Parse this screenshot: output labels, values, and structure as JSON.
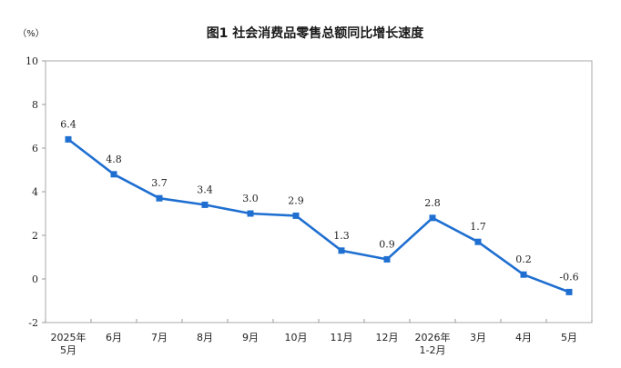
{
  "chart_data": {
    "type": "line",
    "title": "图1  社会消费品零售总额同比增长速度",
    "unit_label": "（%）",
    "categories": [
      [
        "2025年",
        "5月"
      ],
      [
        "6月"
      ],
      [
        "7月"
      ],
      [
        "8月"
      ],
      [
        "9月"
      ],
      [
        "10月"
      ],
      [
        "11月"
      ],
      [
        "12月"
      ],
      [
        "2026年",
        "1-2月"
      ],
      [
        "3月"
      ],
      [
        "4月"
      ],
      [
        "5月"
      ]
    ],
    "values": [
      6.4,
      4.8,
      3.7,
      3.4,
      3.0,
      2.9,
      1.3,
      0.9,
      2.8,
      1.7,
      0.2,
      -0.6
    ],
    "data_labels": [
      "6.4",
      "4.8",
      "3.7",
      "3.4",
      "3.0",
      "2.9",
      "1.3",
      "0.9",
      "2.8",
      "1.7",
      "0.2",
      "-0.6"
    ],
    "ylim": [
      -2,
      10
    ],
    "yticks": [
      -2,
      0,
      2,
      4,
      6,
      8,
      10
    ],
    "ytick_labels": [
      "-2",
      "0",
      "2",
      "4",
      "6",
      "8",
      "10"
    ],
    "grid": false,
    "legend": "none",
    "line_color": "#1f6fd1",
    "axis_color": "#999999",
    "marker": "square"
  }
}
